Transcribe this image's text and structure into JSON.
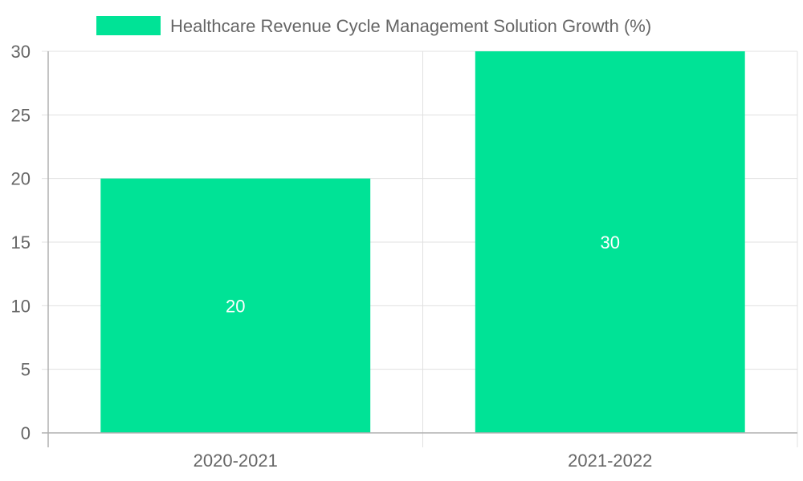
{
  "chart_data": {
    "type": "bar",
    "title": "",
    "categories": [
      "2020-2021",
      "2021-2022"
    ],
    "series": [
      {
        "name": "Healthcare Revenue Cycle Management Solution Growth (%)",
        "values": [
          20,
          30
        ],
        "color": "#00e396"
      }
    ],
    "xlabel": "",
    "ylabel": "",
    "ylim": [
      0,
      30
    ],
    "yticks": [
      0,
      5,
      10,
      15,
      20,
      25,
      30
    ],
    "grid": true,
    "legend_position": "top-center",
    "data_labels": [
      "20",
      "30"
    ],
    "data_label_color": "#ffffff"
  }
}
